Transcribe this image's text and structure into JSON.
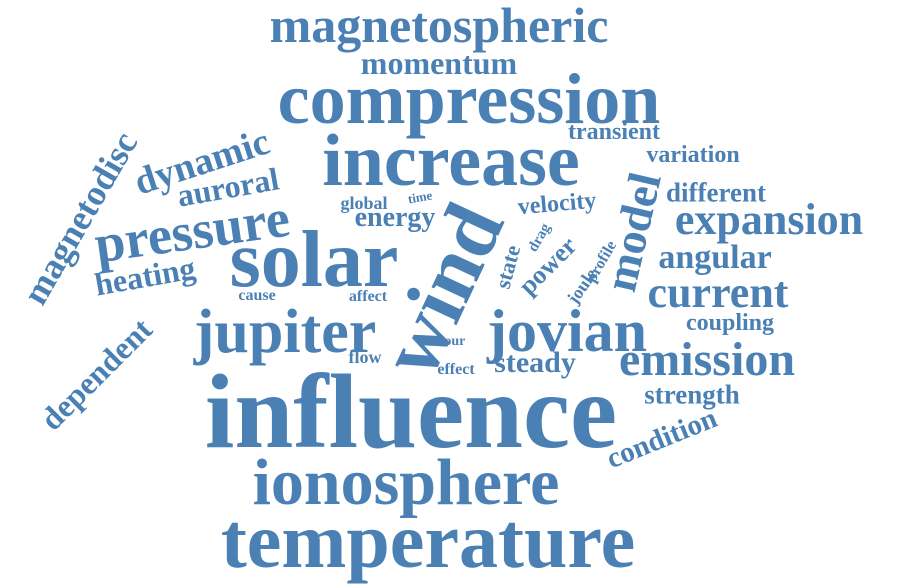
{
  "color": "#4a80b4",
  "words": {
    "w01": "magnetospheric",
    "w02": "momentum",
    "w03": "compression",
    "w04": "transient",
    "w05": "increase",
    "w06": "variation",
    "w07": "magnetodisc",
    "w08": "dynamic",
    "w09": "auroral",
    "w10": "time",
    "w11": "model",
    "w12": "different",
    "w13": "global",
    "w14": "velocity",
    "w15": "pressure",
    "w16": "energy",
    "w17": "expansion",
    "w18": "solar",
    "w19": "drag",
    "w20": "angular",
    "w21": "heating",
    "w22": "state",
    "w23": "power",
    "w24": "joule",
    "w25": "profile",
    "w26": "wind",
    "w27": "cause",
    "w28": "affect",
    "w29": "current",
    "w30": "jupiter",
    "w31": "jovian",
    "w32": "coupling",
    "w33": "dependent",
    "w34": "hour",
    "w35": "flow",
    "w36": "steady",
    "w37": "emission",
    "w38": "effect",
    "w39": "strength",
    "w40": "influence",
    "w41": "condition",
    "w42": "ionosphere",
    "w43": "temperature"
  }
}
